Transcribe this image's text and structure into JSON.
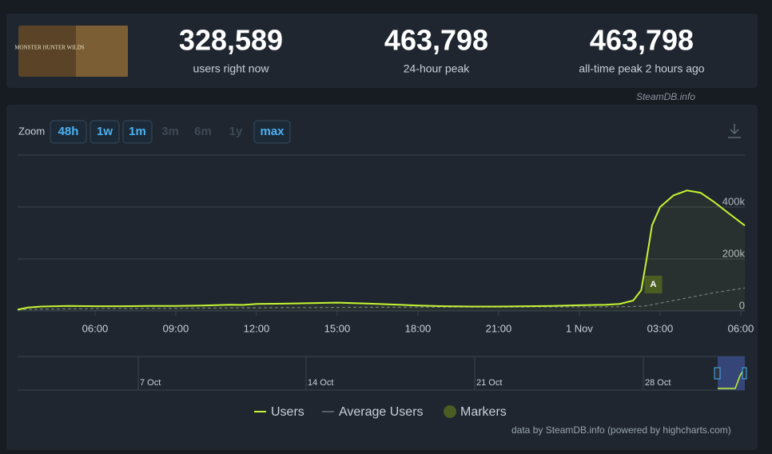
{
  "header": {
    "image_text": "MONSTER HUNTER WILDS",
    "stats": [
      {
        "value": "328,589",
        "label": "users right now"
      },
      {
        "value": "463,798",
        "label": "24-hour peak"
      },
      {
        "value": "463,798",
        "label": "all-time peak 2 hours ago"
      }
    ]
  },
  "watermark": "SteamDB.info",
  "zoom": {
    "label": "Zoom",
    "buttons": [
      {
        "text": "48h",
        "enabled": true
      },
      {
        "text": "1w",
        "enabled": true
      },
      {
        "text": "1m",
        "enabled": true
      },
      {
        "text": "3m",
        "enabled": false
      },
      {
        "text": "6m",
        "enabled": false
      },
      {
        "text": "1y",
        "enabled": false
      },
      {
        "text": "max",
        "enabled": true
      }
    ]
  },
  "chart_data": {
    "type": "line",
    "x": [
      3.12,
      3.5,
      4,
      5,
      6,
      7,
      8,
      9,
      10,
      11,
      11.5,
      12,
      13,
      14,
      15,
      16,
      17,
      18,
      19,
      20,
      21,
      22,
      23,
      24,
      25,
      25.5,
      26,
      26.3,
      26.5,
      26.7,
      27,
      27.5,
      28,
      28.5,
      29,
      29.5,
      30.15
    ],
    "series": [
      {
        "name": "Users",
        "color": "#c6f432",
        "values": [
          5000,
          13000,
          17000,
          19000,
          18000,
          18000,
          19000,
          19000,
          21000,
          24000,
          23000,
          27000,
          28000,
          30000,
          32000,
          29000,
          25000,
          21000,
          18000,
          17000,
          17000,
          18000,
          19000,
          22000,
          24000,
          27000,
          40000,
          80000,
          200000,
          330000,
          400000,
          445000,
          463798,
          455000,
          420000,
          380000,
          328589
        ]
      },
      {
        "name": "Average Users",
        "color": "#6b7480",
        "values": [
          4000,
          6000,
          7000,
          8000,
          9000,
          9500,
          10000,
          10500,
          11000,
          11500,
          12000,
          12000,
          12500,
          13000,
          13500,
          14000,
          14000,
          14500,
          14500,
          15000,
          15000,
          15000,
          15500,
          15500,
          16000,
          16000,
          17000,
          18000,
          20000,
          24000,
          30000,
          40000,
          50000,
          60000,
          70000,
          78000,
          88000
        ]
      }
    ],
    "markers": {
      "name": "Markers",
      "color": "#4a5d23",
      "points": [
        {
          "x": 26.75,
          "label": "A"
        }
      ]
    },
    "xlim": [
      3.12,
      30.15
    ],
    "xticks": [
      {
        "value": 6,
        "label": "06:00"
      },
      {
        "value": 9,
        "label": "09:00"
      },
      {
        "value": 12,
        "label": "12:00"
      },
      {
        "value": 15,
        "label": "15:00"
      },
      {
        "value": 18,
        "label": "18:00"
      },
      {
        "value": 21,
        "label": "21:00"
      },
      {
        "value": 24,
        "label": "1 Nov"
      },
      {
        "value": 27,
        "label": "03:00"
      },
      {
        "value": 30,
        "label": "06:00"
      }
    ],
    "ylim": [
      0,
      600000
    ],
    "yticks": [
      0,
      {
        "value": 200000,
        "label": "200k"
      },
      {
        "value": 400000,
        "label": "400k"
      }
    ],
    "grid": true
  },
  "navigator": {
    "labels": [
      "7 Oct",
      "14 Oct",
      "21 Oct",
      "28 Oct"
    ]
  },
  "credits": "data by SteamDB.info (powered by highcharts.com)"
}
